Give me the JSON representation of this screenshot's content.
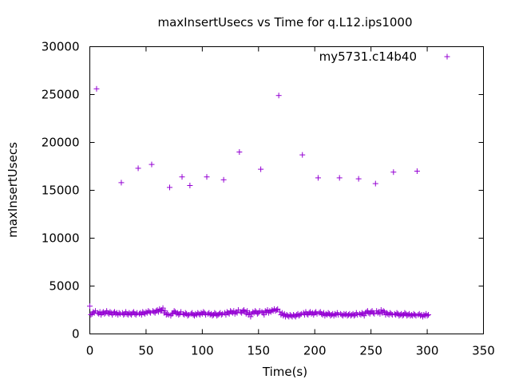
{
  "chart_data": {
    "type": "scatter",
    "title": "maxInsertUsecs vs Time for q.L12.ips1000",
    "xlabel": "Time(s)",
    "ylabel": "maxInsertUsecs",
    "xlim": [
      0,
      350
    ],
    "ylim": [
      0,
      30000
    ],
    "xticks": [
      "0",
      "50",
      "100",
      "150",
      "200",
      "250",
      "300",
      "350"
    ],
    "yticks": [
      "0",
      "5000",
      "10000",
      "15000",
      "20000",
      "25000",
      "30000"
    ],
    "grid": false,
    "legend_position": "top-right",
    "marker": "+",
    "color": "#9400d3",
    "series": [
      {
        "name": "my5731.c14b40",
        "points": [
          [
            6,
            25600
          ],
          [
            28,
            15800
          ],
          [
            43,
            17300
          ],
          [
            55,
            17700
          ],
          [
            71,
            15300
          ],
          [
            82,
            16400
          ],
          [
            89,
            15500
          ],
          [
            104,
            16400
          ],
          [
            119,
            16100
          ],
          [
            133,
            19000
          ],
          [
            152,
            17200
          ],
          [
            168,
            24900
          ],
          [
            189,
            18700
          ],
          [
            203,
            16300
          ],
          [
            222,
            16300
          ],
          [
            239,
            16200
          ],
          [
            254,
            15700
          ],
          [
            270,
            16900
          ],
          [
            291,
            17000
          ],
          [
            0,
            2900
          ],
          [
            1,
            2000
          ],
          [
            2,
            2100
          ],
          [
            3,
            2300
          ],
          [
            4,
            2200
          ],
          [
            5,
            2400
          ],
          [
            7,
            2200
          ],
          [
            8,
            2100
          ],
          [
            9,
            2300
          ],
          [
            10,
            2000
          ],
          [
            11,
            2200
          ],
          [
            12,
            2300
          ],
          [
            13,
            2100
          ],
          [
            14,
            2200
          ],
          [
            15,
            2400
          ],
          [
            16,
            2200
          ],
          [
            17,
            2100
          ],
          [
            18,
            2300
          ],
          [
            19,
            2200
          ],
          [
            20,
            2000
          ],
          [
            21,
            2200
          ],
          [
            22,
            2300
          ],
          [
            23,
            2100
          ],
          [
            24,
            2200
          ],
          [
            25,
            2000
          ],
          [
            26,
            2200
          ],
          [
            27,
            2100
          ],
          [
            29,
            2200
          ],
          [
            30,
            2000
          ],
          [
            31,
            2100
          ],
          [
            32,
            2300
          ],
          [
            33,
            2100
          ],
          [
            34,
            2000
          ],
          [
            35,
            2200
          ],
          [
            36,
            2100
          ],
          [
            37,
            2000
          ],
          [
            38,
            2200
          ],
          [
            39,
            2300
          ],
          [
            40,
            2100
          ],
          [
            41,
            2000
          ],
          [
            42,
            2200
          ],
          [
            44,
            2100
          ],
          [
            45,
            2200
          ],
          [
            46,
            2000
          ],
          [
            47,
            2300
          ],
          [
            48,
            2200
          ],
          [
            49,
            2100
          ],
          [
            50,
            2300
          ],
          [
            51,
            2200
          ],
          [
            52,
            2400
          ],
          [
            53,
            2300
          ],
          [
            54,
            2200
          ],
          [
            56,
            2400
          ],
          [
            57,
            2300
          ],
          [
            58,
            2200
          ],
          [
            59,
            2400
          ],
          [
            60,
            2500
          ],
          [
            61,
            2300
          ],
          [
            62,
            2600
          ],
          [
            63,
            2400
          ],
          [
            64,
            2500
          ],
          [
            65,
            2700
          ],
          [
            66,
            2200
          ],
          [
            67,
            2400
          ],
          [
            68,
            2000
          ],
          [
            69,
            2100
          ],
          [
            70,
            2000
          ],
          [
            72,
            1900
          ],
          [
            73,
            2100
          ],
          [
            74,
            2200
          ],
          [
            75,
            2400
          ],
          [
            76,
            2300
          ],
          [
            77,
            2100
          ],
          [
            78,
            2200
          ],
          [
            79,
            2000
          ],
          [
            80,
            2100
          ],
          [
            81,
            2300
          ],
          [
            83,
            2100
          ],
          [
            84,
            2000
          ],
          [
            85,
            2200
          ],
          [
            86,
            2100
          ],
          [
            87,
            1900
          ],
          [
            88,
            2000
          ],
          [
            90,
            2100
          ],
          [
            91,
            2200
          ],
          [
            92,
            2000
          ],
          [
            93,
            1900
          ],
          [
            94,
            2100
          ],
          [
            95,
            2000
          ],
          [
            96,
            2200
          ],
          [
            97,
            2100
          ],
          [
            98,
            2000
          ],
          [
            99,
            2200
          ],
          [
            100,
            2100
          ],
          [
            101,
            2300
          ],
          [
            102,
            2200
          ],
          [
            103,
            2000
          ],
          [
            105,
            2100
          ],
          [
            106,
            2200
          ],
          [
            107,
            2000
          ],
          [
            108,
            2100
          ],
          [
            109,
            1900
          ],
          [
            110,
            2000
          ],
          [
            111,
            2200
          ],
          [
            112,
            2100
          ],
          [
            113,
            1900
          ],
          [
            114,
            2000
          ],
          [
            115,
            2100
          ],
          [
            116,
            2200
          ],
          [
            117,
            2000
          ],
          [
            118,
            2100
          ],
          [
            120,
            2200
          ],
          [
            121,
            2000
          ],
          [
            122,
            2300
          ],
          [
            123,
            2200
          ],
          [
            124,
            2100
          ],
          [
            125,
            2400
          ],
          [
            126,
            2300
          ],
          [
            127,
            2200
          ],
          [
            128,
            2400
          ],
          [
            129,
            2100
          ],
          [
            130,
            2300
          ],
          [
            131,
            2200
          ],
          [
            132,
            2500
          ],
          [
            134,
            2300
          ],
          [
            135,
            2200
          ],
          [
            136,
            2400
          ],
          [
            137,
            2500
          ],
          [
            138,
            2300
          ],
          [
            139,
            2100
          ],
          [
            140,
            2400
          ],
          [
            141,
            2000
          ],
          [
            142,
            2200
          ],
          [
            143,
            1800
          ],
          [
            144,
            2100
          ],
          [
            145,
            2300
          ],
          [
            146,
            2200
          ],
          [
            147,
            2400
          ],
          [
            148,
            2300
          ],
          [
            149,
            2100
          ],
          [
            150,
            2200
          ],
          [
            151,
            2400
          ],
          [
            153,
            2300
          ],
          [
            154,
            2200
          ],
          [
            155,
            2000
          ],
          [
            156,
            2400
          ],
          [
            157,
            2300
          ],
          [
            158,
            2500
          ],
          [
            159,
            2200
          ],
          [
            160,
            2400
          ],
          [
            161,
            2300
          ],
          [
            162,
            2500
          ],
          [
            163,
            2400
          ],
          [
            164,
            2600
          ],
          [
            165,
            2400
          ],
          [
            166,
            2500
          ],
          [
            167,
            2600
          ],
          [
            169,
            2300
          ],
          [
            170,
            2000
          ],
          [
            171,
            2200
          ],
          [
            172,
            1900
          ],
          [
            173,
            2100
          ],
          [
            174,
            1800
          ],
          [
            175,
            2000
          ],
          [
            176,
            1900
          ],
          [
            177,
            1800
          ],
          [
            178,
            2000
          ],
          [
            179,
            1900
          ],
          [
            180,
            1800
          ],
          [
            181,
            2000
          ],
          [
            182,
            1900
          ],
          [
            183,
            1800
          ],
          [
            184,
            2000
          ],
          [
            185,
            2100
          ],
          [
            186,
            1900
          ],
          [
            187,
            2000
          ],
          [
            188,
            2100
          ],
          [
            190,
            2200
          ],
          [
            191,
            2000
          ],
          [
            192,
            2300
          ],
          [
            193,
            2100
          ],
          [
            194,
            2000
          ],
          [
            195,
            2200
          ],
          [
            196,
            2300
          ],
          [
            197,
            2100
          ],
          [
            198,
            2200
          ],
          [
            199,
            2000
          ],
          [
            200,
            2200
          ],
          [
            201,
            2300
          ],
          [
            202,
            2100
          ],
          [
            204,
            2200
          ],
          [
            205,
            2300
          ],
          [
            206,
            2100
          ],
          [
            207,
            2000
          ],
          [
            208,
            2200
          ],
          [
            209,
            1900
          ],
          [
            210,
            2100
          ],
          [
            211,
            2000
          ],
          [
            212,
            2200
          ],
          [
            213,
            2100
          ],
          [
            214,
            1900
          ],
          [
            215,
            2000
          ],
          [
            216,
            2100
          ],
          [
            217,
            1900
          ],
          [
            218,
            2100
          ],
          [
            219,
            2000
          ],
          [
            220,
            2200
          ],
          [
            221,
            2000
          ],
          [
            223,
            2100
          ],
          [
            224,
            2000
          ],
          [
            225,
            1900
          ],
          [
            226,
            2100
          ],
          [
            227,
            2000
          ],
          [
            228,
            2100
          ],
          [
            229,
            1900
          ],
          [
            230,
            2000
          ],
          [
            231,
            2100
          ],
          [
            232,
            1900
          ],
          [
            233,
            2000
          ],
          [
            234,
            2100
          ],
          [
            235,
            1900
          ],
          [
            236,
            2000
          ],
          [
            237,
            2200
          ],
          [
            238,
            2000
          ],
          [
            240,
            2100
          ],
          [
            241,
            2000
          ],
          [
            242,
            2200
          ],
          [
            243,
            2100
          ],
          [
            244,
            1900
          ],
          [
            245,
            2200
          ],
          [
            246,
            2300
          ],
          [
            247,
            2400
          ],
          [
            248,
            2200
          ],
          [
            249,
            2100
          ],
          [
            250,
            2300
          ],
          [
            251,
            2400
          ],
          [
            252,
            2200
          ],
          [
            253,
            2100
          ],
          [
            255,
            2400
          ],
          [
            256,
            2200
          ],
          [
            257,
            2300
          ],
          [
            258,
            2100
          ],
          [
            259,
            2500
          ],
          [
            260,
            2200
          ],
          [
            261,
            2400
          ],
          [
            262,
            2300
          ],
          [
            263,
            2000
          ],
          [
            264,
            2200
          ],
          [
            265,
            2100
          ],
          [
            266,
            2000
          ],
          [
            267,
            2200
          ],
          [
            268,
            2100
          ],
          [
            269,
            2000
          ],
          [
            271,
            2100
          ],
          [
            272,
            2000
          ],
          [
            273,
            2200
          ],
          [
            274,
            2100
          ],
          [
            275,
            1900
          ],
          [
            276,
            2000
          ],
          [
            277,
            2100
          ],
          [
            278,
            1900
          ],
          [
            279,
            2000
          ],
          [
            280,
            2200
          ],
          [
            281,
            2100
          ],
          [
            282,
            1900
          ],
          [
            283,
            2000
          ],
          [
            284,
            2100
          ],
          [
            285,
            1900
          ],
          [
            286,
            2000
          ],
          [
            287,
            1900
          ],
          [
            288,
            2100
          ],
          [
            289,
            2000
          ],
          [
            290,
            1900
          ],
          [
            292,
            2000
          ],
          [
            293,
            2100
          ],
          [
            294,
            1900
          ],
          [
            295,
            2000
          ],
          [
            296,
            1800
          ],
          [
            297,
            2000
          ],
          [
            298,
            1900
          ],
          [
            299,
            2100
          ],
          [
            300,
            1900
          ],
          [
            301,
            2000
          ]
        ]
      }
    ]
  }
}
